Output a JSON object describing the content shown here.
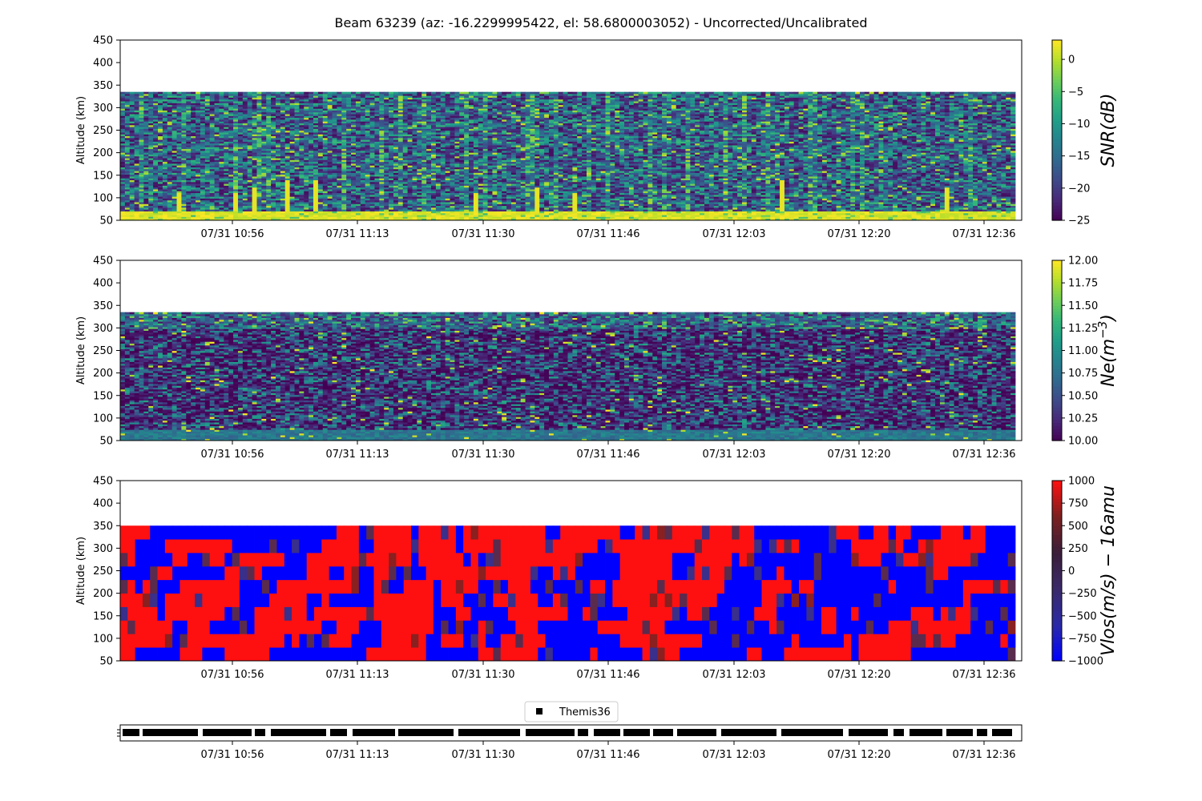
{
  "title": "Beam 63239 (az: -16.2299995422, el: 58.6800003052) - Uncorrected/Uncalibrated",
  "time_ticks": [
    "07/31 10:56",
    "07/31 11:13",
    "07/31 11:30",
    "07/31 11:46",
    "07/31 12:03",
    "07/31 12:20",
    "07/31 12:36"
  ],
  "colors": {
    "viridis": [
      "#440154",
      "#482878",
      "#3e4989",
      "#31688e",
      "#26828e",
      "#1f9e89",
      "#35b779",
      "#6ece58",
      "#b5de2b",
      "#fde725"
    ],
    "velocity": [
      "#0000ff",
      "#2020ff",
      "#3a2f8a",
      "#5a2b4d",
      "#8a2020",
      "#ff1010"
    ],
    "track": "#000000"
  },
  "chart_data": [
    {
      "type": "heatmap",
      "panel": "snr",
      "ylabel": "Altitude (km)",
      "ylim": [
        50,
        450
      ],
      "yticks": [
        "50",
        "100",
        "150",
        "200",
        "250",
        "300",
        "350",
        "400",
        "450"
      ],
      "data_altitude_range": [
        50,
        335
      ],
      "time_range": [
        "07/31 10:42",
        "07/31 12:39"
      ],
      "colorbar_label": "SNR(dB)",
      "colorbar_range": [
        -25,
        3
      ],
      "colorbar_ticks": [
        "0",
        "−5",
        "−10",
        "−15",
        "−20",
        "−25"
      ],
      "colormap": "viridis",
      "features": "strong signal (~0 dB) below ~75 km across full interval; noise ~-20 dB above; isolated bright columns near 10:55, 11:00, 11:05, 11:15, 11:30, 11:38"
    },
    {
      "type": "heatmap",
      "panel": "ne",
      "ylabel": "Altitude (km)",
      "ylim": [
        50,
        450
      ],
      "yticks": [
        "50",
        "100",
        "150",
        "200",
        "250",
        "300",
        "350",
        "400",
        "450"
      ],
      "data_altitude_range": [
        50,
        335
      ],
      "time_range": [
        "07/31 10:42",
        "07/31 12:39"
      ],
      "colorbar_label": "Ne(m^-3)",
      "colorbar_range": [
        10,
        12
      ],
      "colorbar_ticks": [
        "12.00",
        "11.75",
        "11.50",
        "11.25",
        "11.00",
        "10.75",
        "10.50",
        "10.25",
        "10.00"
      ],
      "colormap": "viridis",
      "features": "mostly ~10.0-10.5 with scattered higher values; enhanced near top (~330 km) and bottom (~60 km)"
    },
    {
      "type": "heatmap",
      "panel": "vlos",
      "ylabel": "Altitude (km)",
      "ylim": [
        50,
        450
      ],
      "yticks": [
        "50",
        "100",
        "150",
        "200",
        "250",
        "300",
        "350",
        "400",
        "450"
      ],
      "data_altitude_range": [
        50,
        350
      ],
      "altitude_gates": 10,
      "time_range": [
        "07/31 10:42",
        "07/31 12:39"
      ],
      "colorbar_label": "Vlos(m/s) − 16amu",
      "colorbar_range": [
        -1000,
        1000
      ],
      "colorbar_ticks": [
        "1000",
        "750",
        "500",
        "250",
        "0",
        "−250",
        "−500",
        "−750",
        "−1000"
      ],
      "colormap": "blue-red",
      "features": "values saturate at ±1000 m/s; alternating red/blue blocks"
    },
    {
      "type": "scatter",
      "panel": "track",
      "legend": [
        "Themis36"
      ],
      "legend_position": "top-center",
      "marker": "square",
      "time_range": [
        "07/31 10:42",
        "07/31 12:39"
      ],
      "gaps_at": [
        "10:45",
        "10:52",
        "10:55",
        "10:58",
        "11:06",
        "11:12",
        "11:15",
        "11:22",
        "11:30",
        "11:40",
        "11:42",
        "11:48",
        "11:55",
        "12:00",
        "12:07",
        "12:12",
        "12:14",
        "12:21",
        "12:27",
        "12:33"
      ]
    }
  ]
}
